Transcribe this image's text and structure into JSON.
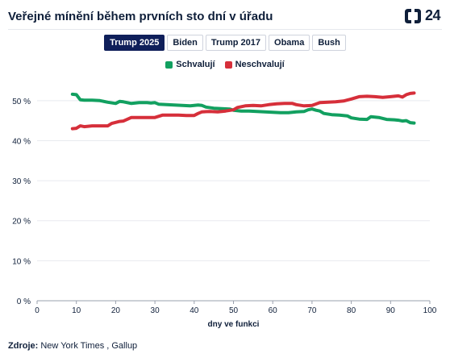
{
  "title": "Veřejné mínění během prvních sto dní v úřadu",
  "logo": {
    "text": "24"
  },
  "tabs": [
    {
      "label": "Trump 2025",
      "active": true
    },
    {
      "label": "Biden",
      "active": false
    },
    {
      "label": "Trump 2017",
      "active": false
    },
    {
      "label": "Obama",
      "active": false
    },
    {
      "label": "Bush",
      "active": false
    }
  ],
  "source": {
    "label": "Zdroje:",
    "text": "New York Times , Gallup"
  },
  "chart_data": {
    "type": "line",
    "xlabel": "dny ve funkci",
    "ylabel": "",
    "xlim": [
      0,
      100
    ],
    "ylim": [
      0,
      55
    ],
    "xticks": [
      "0",
      "10",
      "20",
      "30",
      "40",
      "50",
      "60",
      "70",
      "80",
      "90",
      "100"
    ],
    "yticks": [
      "0 %",
      "10 %",
      "20 %",
      "30 %",
      "40 %",
      "50 %"
    ],
    "grid": true,
    "legend": "top-center",
    "series": [
      {
        "name": "Schvalují",
        "color": "#12a060",
        "x": [
          9,
          10,
          11,
          12,
          14,
          16,
          18,
          20,
          21,
          22,
          24,
          26,
          28,
          29,
          30,
          31,
          33,
          35,
          37,
          39,
          41,
          42,
          43,
          45,
          47,
          49,
          50,
          52,
          54,
          56,
          58,
          60,
          62,
          64,
          66,
          68,
          69,
          70,
          71,
          72,
          73,
          75,
          77,
          79,
          80,
          82,
          84,
          85,
          87,
          89,
          91,
          92,
          93,
          94,
          95,
          96
        ],
        "y": [
          51.6,
          51.5,
          50.2,
          50.1,
          50.1,
          50.0,
          49.6,
          49.3,
          49.8,
          49.7,
          49.3,
          49.5,
          49.5,
          49.4,
          49.5,
          49.1,
          49.0,
          48.9,
          48.8,
          48.7,
          48.9,
          48.8,
          48.4,
          48.1,
          48.0,
          47.9,
          47.6,
          47.4,
          47.4,
          47.3,
          47.2,
          47.1,
          47.0,
          47.0,
          47.2,
          47.3,
          47.7,
          47.9,
          47.6,
          47.4,
          46.8,
          46.5,
          46.4,
          46.2,
          45.7,
          45.4,
          45.3,
          46.0,
          45.8,
          45.3,
          45.2,
          45.1,
          44.9,
          45.0,
          44.5,
          44.4
        ]
      },
      {
        "name": "Neschvalují",
        "color": "#d62f3a",
        "x": [
          9,
          10,
          11,
          12,
          14,
          16,
          18,
          19,
          21,
          22,
          24,
          26,
          28,
          30,
          32,
          34,
          36,
          38,
          40,
          41,
          42,
          44,
          46,
          48,
          50,
          51,
          53,
          55,
          57,
          59,
          61,
          63,
          65,
          66,
          68,
          70,
          72,
          74,
          76,
          78,
          80,
          82,
          84,
          86,
          88,
          90,
          92,
          93,
          94,
          95,
          96
        ],
        "y": [
          43.0,
          43.1,
          43.7,
          43.5,
          43.7,
          43.7,
          43.7,
          44.3,
          44.8,
          44.9,
          45.8,
          45.8,
          45.8,
          45.8,
          46.4,
          46.4,
          46.4,
          46.3,
          46.3,
          46.8,
          47.2,
          47.3,
          47.2,
          47.4,
          47.7,
          48.3,
          48.7,
          48.8,
          48.7,
          49.0,
          49.2,
          49.3,
          49.3,
          49.0,
          48.7,
          48.8,
          49.5,
          49.6,
          49.7,
          49.9,
          50.4,
          51.0,
          51.1,
          51.0,
          50.8,
          51.0,
          51.2,
          50.9,
          51.5,
          51.8,
          51.9
        ]
      }
    ]
  }
}
